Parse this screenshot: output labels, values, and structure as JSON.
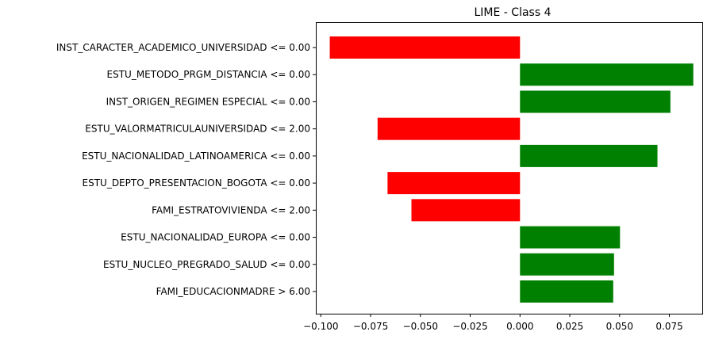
{
  "chart_data": {
    "type": "bar",
    "orientation": "horizontal",
    "title": "LIME - Class 4",
    "xlabel": "",
    "ylabel": "",
    "xlim": [
      -0.1025,
      0.0915
    ],
    "xticks": [
      -0.1,
      -0.075,
      -0.05,
      -0.025,
      0.0,
      0.025,
      0.05,
      0.075
    ],
    "xtick_labels": [
      "−0.100",
      "−0.075",
      "−0.050",
      "−0.025",
      "0.000",
      "0.025",
      "0.050",
      "0.075"
    ],
    "grid": false,
    "legend": "none",
    "colors": {
      "positive": "#008000",
      "negative": "#ff0000"
    },
    "categories": [
      "INST_CARACTER_ACADEMICO_UNIVERSIDAD <= 0.00",
      "ESTU_METODO_PRGM_DISTANCIA <= 0.00",
      "INST_ORIGEN_REGIMEN ESPECIAL <= 0.00",
      "ESTU_VALORMATRICULAUNIVERSIDAD <= 2.00",
      "ESTU_NACIONALIDAD_LATINOAMERICA <= 0.00",
      "ESTU_DEPTO_PRESENTACION_BOGOTA <= 0.00",
      "FAMI_ESTRATOVIVIENDA <= 2.00",
      "ESTU_NACIONALIDAD_EUROPA <= 0.00",
      "ESTU_NUCLEO_PREGRADO_SALUD <= 0.00",
      "FAMI_EDUCACIONMADRE > 6.00"
    ],
    "values": [
      -0.0955,
      0.087,
      0.0755,
      -0.0715,
      0.069,
      -0.0665,
      -0.0545,
      0.0502,
      0.0472,
      0.0468
    ]
  }
}
